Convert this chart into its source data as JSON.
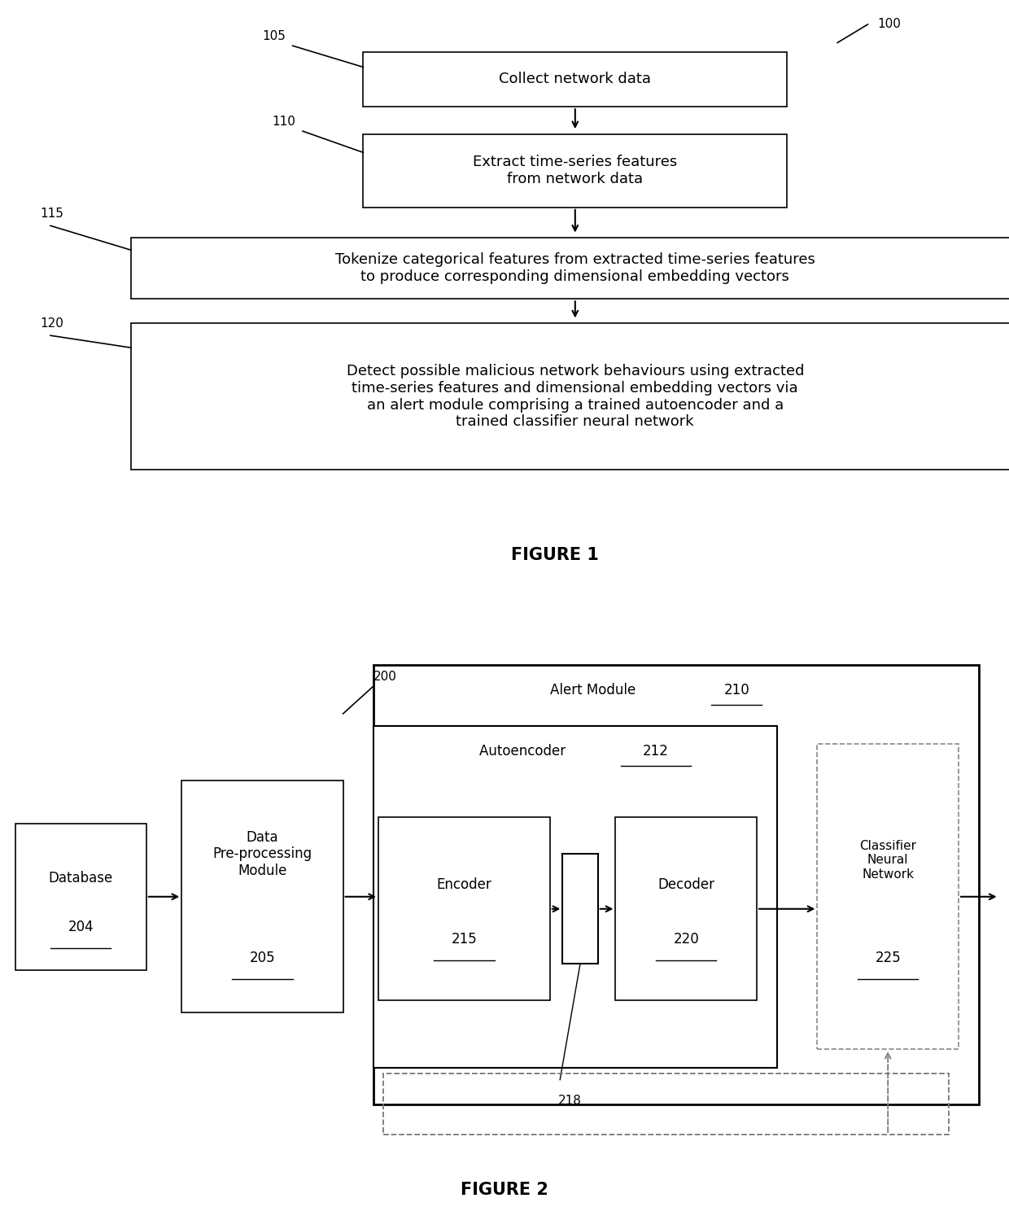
{
  "fig1": {
    "title": "FIGURE 1",
    "label_100": "100",
    "label_105": "105",
    "label_110": "110",
    "label_115": "115",
    "label_120": "120",
    "box1_text": "Collect network data",
    "box2_text": "Extract time-series features\nfrom network data",
    "box3_text": "Tokenize categorical features from extracted time-series features\nto produce corresponding dimensional embedding vectors",
    "box4_text": "Detect possible malicious network behaviours using extracted\ntime-series features and dimensional embedding vectors via\nan alert module comprising a trained autoencoder and a\ntrained classifier neural network"
  },
  "fig2": {
    "title": "FIGURE 2",
    "label_200": "200",
    "db_label": "Database",
    "db_num": "204",
    "preproc_label": "Data\nPre-processing\nModule",
    "preproc_num": "205",
    "alert_label": "Alert Module",
    "alert_num": "210",
    "autoenc_label": "Autoencoder",
    "autoenc_num": "212",
    "encoder_label": "Encoder",
    "encoder_num": "215",
    "decoder_label": "Decoder",
    "decoder_num": "220",
    "classifier_label": "Classifier\nNeural\nNetwork",
    "classifier_num": "225",
    "latent_num": "218"
  },
  "colors": {
    "black": "#000000",
    "white": "#ffffff",
    "gray_dash": "#777777"
  }
}
